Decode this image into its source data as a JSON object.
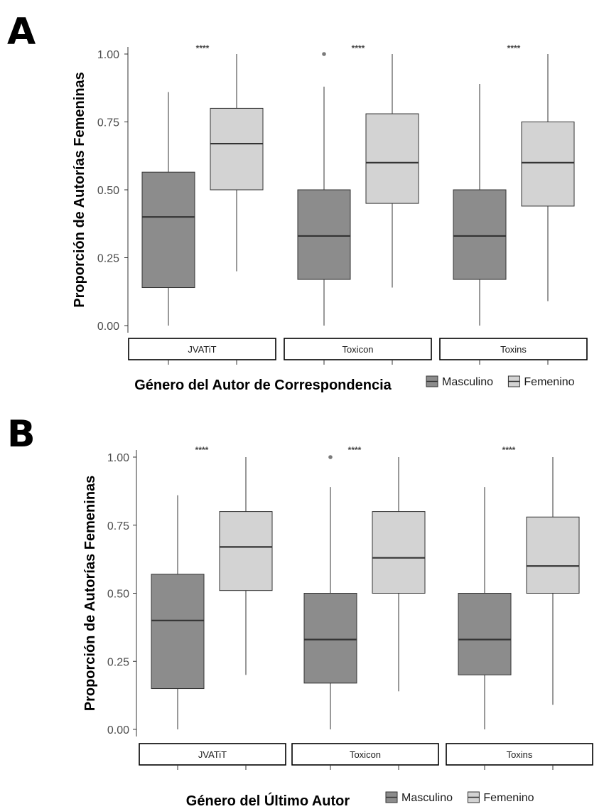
{
  "figure": {
    "colors": {
      "masculino": "#8c8c8c",
      "femenino": "#d3d3d3",
      "outline": "#333333",
      "median": "#333333",
      "axis": "#333333",
      "text": "#000000",
      "tick_text": "#4d4d4d"
    }
  },
  "chart_data": [
    {
      "type": "boxplot",
      "panel_label": "A",
      "ylabel": "Proporción de Autorías Femeninas",
      "xlabel": "Género del Autor de Correspondencia",
      "ylim": [
        0,
        1
      ],
      "yticks": [
        "0.00",
        "0.25",
        "0.50",
        "0.75",
        "1.00"
      ],
      "ytick_values": [
        0,
        0.25,
        0.5,
        0.75,
        1
      ],
      "grid": false,
      "legend": {
        "placement": "bottom-right",
        "entries": [
          {
            "name": "Masculino",
            "color": "#8c8c8c"
          },
          {
            "name": "Femenino",
            "color": "#d3d3d3"
          }
        ]
      },
      "facets": [
        {
          "label": "JVATiT",
          "significance": "****",
          "boxes": [
            {
              "series": "Masculino",
              "min": 0.0,
              "q1": 0.14,
              "median": 0.4,
              "q3": 0.565,
              "max": 0.86,
              "outliers": []
            },
            {
              "series": "Femenino",
              "min": 0.2,
              "q1": 0.5,
              "median": 0.67,
              "q3": 0.8,
              "max": 1.0,
              "outliers": []
            }
          ]
        },
        {
          "label": "Toxicon",
          "significance": "****",
          "boxes": [
            {
              "series": "Masculino",
              "min": 0.0,
              "q1": 0.17,
              "median": 0.33,
              "q3": 0.5,
              "max": 0.88,
              "outliers": [
                1.0
              ]
            },
            {
              "series": "Femenino",
              "min": 0.14,
              "q1": 0.45,
              "median": 0.6,
              "q3": 0.78,
              "max": 1.0,
              "outliers": []
            }
          ]
        },
        {
          "label": "Toxins",
          "significance": "****",
          "boxes": [
            {
              "series": "Masculino",
              "min": 0.0,
              "q1": 0.17,
              "median": 0.33,
              "q3": 0.5,
              "max": 0.89,
              "outliers": []
            },
            {
              "series": "Femenino",
              "min": 0.09,
              "q1": 0.44,
              "median": 0.6,
              "q3": 0.75,
              "max": 1.0,
              "outliers": []
            }
          ]
        }
      ]
    },
    {
      "type": "boxplot",
      "panel_label": "B",
      "ylabel": "Proporción de Autorías Femeninas",
      "xlabel": "Género del Último Autor",
      "ylim": [
        0,
        1
      ],
      "yticks": [
        "0.00",
        "0.25",
        "0.50",
        "0.75",
        "1.00"
      ],
      "ytick_values": [
        0,
        0.25,
        0.5,
        0.75,
        1
      ],
      "grid": false,
      "legend": {
        "placement": "bottom-right",
        "entries": [
          {
            "name": "Masculino",
            "color": "#8c8c8c"
          },
          {
            "name": "Femenino",
            "color": "#d3d3d3"
          }
        ]
      },
      "facets": [
        {
          "label": "JVATiT",
          "significance": "****",
          "boxes": [
            {
              "series": "Masculino",
              "min": 0.0,
              "q1": 0.15,
              "median": 0.4,
              "q3": 0.57,
              "max": 0.86,
              "outliers": []
            },
            {
              "series": "Femenino",
              "min": 0.2,
              "q1": 0.51,
              "median": 0.67,
              "q3": 0.8,
              "max": 1.0,
              "outliers": []
            }
          ]
        },
        {
          "label": "Toxicon",
          "significance": "****",
          "boxes": [
            {
              "series": "Masculino",
              "min": 0.0,
              "q1": 0.17,
              "median": 0.33,
              "q3": 0.5,
              "max": 0.89,
              "outliers": [
                1.0
              ]
            },
            {
              "series": "Femenino",
              "min": 0.14,
              "q1": 0.5,
              "median": 0.63,
              "q3": 0.8,
              "max": 1.0,
              "outliers": []
            }
          ]
        },
        {
          "label": "Toxins",
          "significance": "****",
          "boxes": [
            {
              "series": "Masculino",
              "min": 0.0,
              "q1": 0.2,
              "median": 0.33,
              "q3": 0.5,
              "max": 0.89,
              "outliers": []
            },
            {
              "series": "Femenino",
              "min": 0.09,
              "q1": 0.5,
              "median": 0.6,
              "q3": 0.78,
              "max": 1.0,
              "outliers": []
            }
          ]
        }
      ]
    }
  ]
}
